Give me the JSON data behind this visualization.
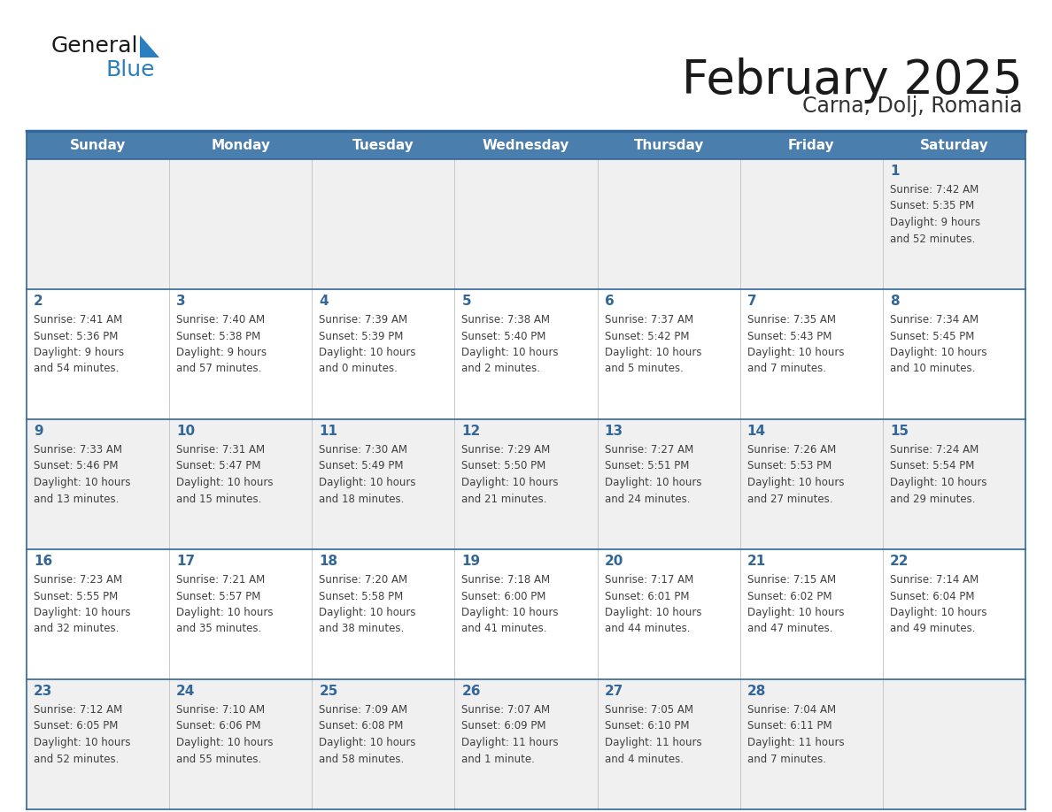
{
  "title": "February 2025",
  "subtitle": "Carna, Dolj, Romania",
  "days_of_week": [
    "Sunday",
    "Monday",
    "Tuesday",
    "Wednesday",
    "Thursday",
    "Friday",
    "Saturday"
  ],
  "header_bg": "#4a7ead",
  "header_text": "#ffffff",
  "row_odd_bg": "#f0f0f0",
  "row_even_bg": "#ffffff",
  "border_color": "#336699",
  "day_num_color": "#336699",
  "text_color": "#404040",
  "title_color": "#1a1a1a",
  "subtitle_color": "#333333",
  "logo_general_color": "#1a1a1a",
  "logo_blue_color": "#2a7fc1",
  "calendar_data": [
    [
      {
        "day": null,
        "info": null
      },
      {
        "day": null,
        "info": null
      },
      {
        "day": null,
        "info": null
      },
      {
        "day": null,
        "info": null
      },
      {
        "day": null,
        "info": null
      },
      {
        "day": null,
        "info": null
      },
      {
        "day": "1",
        "info": "Sunrise: 7:42 AM\nSunset: 5:35 PM\nDaylight: 9 hours\nand 52 minutes."
      }
    ],
    [
      {
        "day": "2",
        "info": "Sunrise: 7:41 AM\nSunset: 5:36 PM\nDaylight: 9 hours\nand 54 minutes."
      },
      {
        "day": "3",
        "info": "Sunrise: 7:40 AM\nSunset: 5:38 PM\nDaylight: 9 hours\nand 57 minutes."
      },
      {
        "day": "4",
        "info": "Sunrise: 7:39 AM\nSunset: 5:39 PM\nDaylight: 10 hours\nand 0 minutes."
      },
      {
        "day": "5",
        "info": "Sunrise: 7:38 AM\nSunset: 5:40 PM\nDaylight: 10 hours\nand 2 minutes."
      },
      {
        "day": "6",
        "info": "Sunrise: 7:37 AM\nSunset: 5:42 PM\nDaylight: 10 hours\nand 5 minutes."
      },
      {
        "day": "7",
        "info": "Sunrise: 7:35 AM\nSunset: 5:43 PM\nDaylight: 10 hours\nand 7 minutes."
      },
      {
        "day": "8",
        "info": "Sunrise: 7:34 AM\nSunset: 5:45 PM\nDaylight: 10 hours\nand 10 minutes."
      }
    ],
    [
      {
        "day": "9",
        "info": "Sunrise: 7:33 AM\nSunset: 5:46 PM\nDaylight: 10 hours\nand 13 minutes."
      },
      {
        "day": "10",
        "info": "Sunrise: 7:31 AM\nSunset: 5:47 PM\nDaylight: 10 hours\nand 15 minutes."
      },
      {
        "day": "11",
        "info": "Sunrise: 7:30 AM\nSunset: 5:49 PM\nDaylight: 10 hours\nand 18 minutes."
      },
      {
        "day": "12",
        "info": "Sunrise: 7:29 AM\nSunset: 5:50 PM\nDaylight: 10 hours\nand 21 minutes."
      },
      {
        "day": "13",
        "info": "Sunrise: 7:27 AM\nSunset: 5:51 PM\nDaylight: 10 hours\nand 24 minutes."
      },
      {
        "day": "14",
        "info": "Sunrise: 7:26 AM\nSunset: 5:53 PM\nDaylight: 10 hours\nand 27 minutes."
      },
      {
        "day": "15",
        "info": "Sunrise: 7:24 AM\nSunset: 5:54 PM\nDaylight: 10 hours\nand 29 minutes."
      }
    ],
    [
      {
        "day": "16",
        "info": "Sunrise: 7:23 AM\nSunset: 5:55 PM\nDaylight: 10 hours\nand 32 minutes."
      },
      {
        "day": "17",
        "info": "Sunrise: 7:21 AM\nSunset: 5:57 PM\nDaylight: 10 hours\nand 35 minutes."
      },
      {
        "day": "18",
        "info": "Sunrise: 7:20 AM\nSunset: 5:58 PM\nDaylight: 10 hours\nand 38 minutes."
      },
      {
        "day": "19",
        "info": "Sunrise: 7:18 AM\nSunset: 6:00 PM\nDaylight: 10 hours\nand 41 minutes."
      },
      {
        "day": "20",
        "info": "Sunrise: 7:17 AM\nSunset: 6:01 PM\nDaylight: 10 hours\nand 44 minutes."
      },
      {
        "day": "21",
        "info": "Sunrise: 7:15 AM\nSunset: 6:02 PM\nDaylight: 10 hours\nand 47 minutes."
      },
      {
        "day": "22",
        "info": "Sunrise: 7:14 AM\nSunset: 6:04 PM\nDaylight: 10 hours\nand 49 minutes."
      }
    ],
    [
      {
        "day": "23",
        "info": "Sunrise: 7:12 AM\nSunset: 6:05 PM\nDaylight: 10 hours\nand 52 minutes."
      },
      {
        "day": "24",
        "info": "Sunrise: 7:10 AM\nSunset: 6:06 PM\nDaylight: 10 hours\nand 55 minutes."
      },
      {
        "day": "25",
        "info": "Sunrise: 7:09 AM\nSunset: 6:08 PM\nDaylight: 10 hours\nand 58 minutes."
      },
      {
        "day": "26",
        "info": "Sunrise: 7:07 AM\nSunset: 6:09 PM\nDaylight: 11 hours\nand 1 minute."
      },
      {
        "day": "27",
        "info": "Sunrise: 7:05 AM\nSunset: 6:10 PM\nDaylight: 11 hours\nand 4 minutes."
      },
      {
        "day": "28",
        "info": "Sunrise: 7:04 AM\nSunset: 6:11 PM\nDaylight: 11 hours\nand 7 minutes."
      },
      {
        "day": null,
        "info": null
      }
    ]
  ]
}
